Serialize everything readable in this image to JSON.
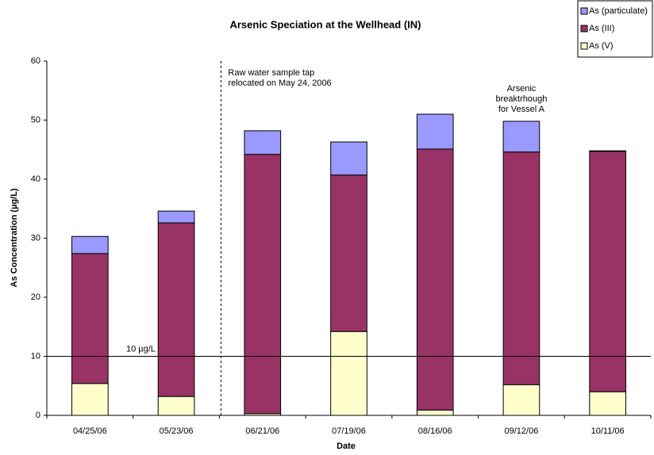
{
  "chart_data": {
    "type": "stacked_bar",
    "title": "Arsenic Speciation at the Wellhead (IN)",
    "x_label": "Date",
    "y_label": "As Concentration (µg/L)",
    "categories": [
      "04/25/06",
      "05/23/06",
      "06/21/06",
      "07/19/06",
      "08/16/06",
      "09/12/06",
      "10/11/06"
    ],
    "series": [
      {
        "name": "As (particulate)",
        "color": "#9999ff",
        "values": [
          2.9,
          2.0,
          4.0,
          5.6,
          5.9,
          5.2,
          0.1
        ]
      },
      {
        "name": "As (III)",
        "color": "#993366",
        "values": [
          22.0,
          29.4,
          43.9,
          26.5,
          44.2,
          39.4,
          40.7
        ]
      },
      {
        "name": "As (V)",
        "color": "#ffffcc",
        "values": [
          5.4,
          3.2,
          0.3,
          14.2,
          0.9,
          5.2,
          4.0
        ]
      }
    ],
    "ylim": [
      0,
      60
    ],
    "yticks": [
      0,
      10,
      20,
      30,
      40,
      50,
      60
    ],
    "reference_line": {
      "value": 10,
      "label": "10 µg/L"
    },
    "annotations": [
      {
        "lines": [
          "Raw water sample tap",
          "relocated on May 24, 2006"
        ]
      },
      {
        "lines": [
          "Arsenic",
          "breaktrhough",
          "for Vessel A"
        ]
      }
    ],
    "legend": "top-right"
  }
}
